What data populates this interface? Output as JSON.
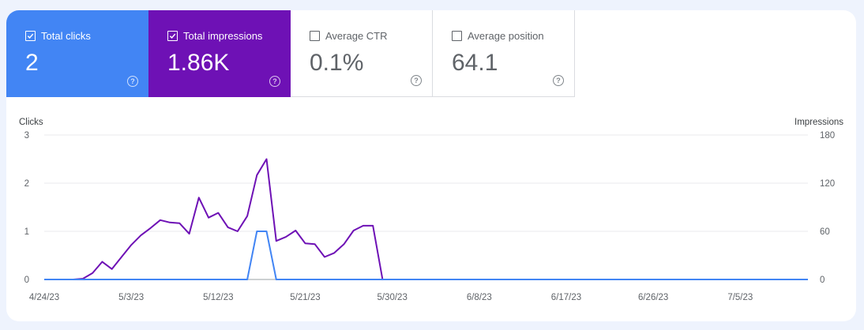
{
  "metrics": [
    {
      "key": "clicks",
      "label": "Total clicks",
      "value": "2",
      "selected": true,
      "color": "#4285f4"
    },
    {
      "key": "impressions",
      "label": "Total impressions",
      "value": "1.86K",
      "selected": true,
      "color": "#6e11b5"
    },
    {
      "key": "ctr",
      "label": "Average CTR",
      "value": "0.1%",
      "selected": false,
      "color": "#ffffff"
    },
    {
      "key": "position",
      "label": "Average position",
      "value": "64.1",
      "selected": false,
      "color": "#ffffff"
    }
  ],
  "help_icon": "?",
  "chart_data": {
    "type": "line",
    "xlabel": "",
    "ylabel_left": "Clicks",
    "ylabel_right": "Impressions",
    "x_tick_labels": [
      "4/24/23",
      "5/3/23",
      "5/12/23",
      "5/21/23",
      "5/30/23",
      "6/8/23",
      "6/17/23",
      "6/26/23",
      "7/5/23"
    ],
    "x_range": [
      "4/24/23",
      "7/12/23"
    ],
    "ylim_left": [
      0,
      3
    ],
    "yticks_left": [
      0,
      1,
      2,
      3
    ],
    "ylim_right": [
      0,
      180
    ],
    "yticks_right": [
      0,
      60,
      120,
      180
    ],
    "grid": true,
    "legend": "none",
    "series": [
      {
        "name": "Clicks",
        "axis": "left",
        "color": "#4285f4",
        "x": [
          "4/24/23",
          "5/15/23",
          "5/16/23",
          "5/17/23",
          "5/18/23",
          "7/12/23"
        ],
        "y": [
          0,
          0,
          1,
          1,
          0,
          0
        ]
      },
      {
        "name": "Impressions",
        "axis": "right",
        "color": "#6e11b5",
        "x": [
          "4/24/23",
          "4/27/23",
          "4/28/23",
          "4/29/23",
          "4/30/23",
          "5/1/23",
          "5/2/23",
          "5/3/23",
          "5/4/23",
          "5/5/23",
          "5/6/23",
          "5/7/23",
          "5/8/23",
          "5/9/23",
          "5/10/23",
          "5/11/23",
          "5/12/23",
          "5/13/23",
          "5/14/23",
          "5/15/23",
          "5/16/23",
          "5/17/23",
          "5/18/23",
          "5/19/23",
          "5/20/23",
          "5/21/23",
          "5/22/23",
          "5/23/23",
          "5/24/23",
          "5/25/23",
          "5/26/23",
          "5/27/23",
          "5/28/23",
          "5/29/23",
          "5/30/23",
          "7/12/23"
        ],
        "y": [
          0,
          0,
          1,
          8,
          22,
          13,
          28,
          43,
          55,
          64,
          74,
          71,
          70,
          57,
          102,
          77,
          83,
          65,
          60,
          79,
          130,
          150,
          48,
          53,
          61,
          45,
          44,
          28,
          33,
          44,
          61,
          67,
          67,
          0,
          0,
          0
        ]
      }
    ]
  }
}
